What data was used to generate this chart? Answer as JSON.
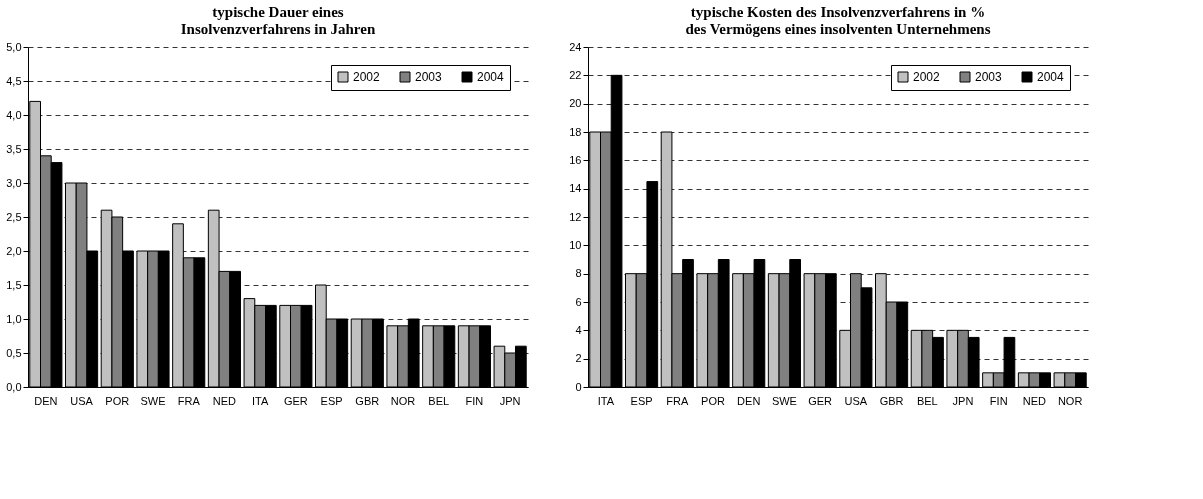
{
  "chart_data": [
    {
      "type": "bar",
      "title": "typische Dauer eines\nInsolvenzverfahrens in Jahren",
      "categories": [
        "DEN",
        "USA",
        "POR",
        "SWE",
        "FRA",
        "NED",
        "ITA",
        "GER",
        "ESP",
        "GBR",
        "NOR",
        "BEL",
        "FIN",
        "JPN"
      ],
      "series": [
        {
          "name": "2002",
          "color": "#c0c0c0",
          "values": [
            4.2,
            3.0,
            2.6,
            2.0,
            2.4,
            2.6,
            1.3,
            1.2,
            1.5,
            1.0,
            0.9,
            0.9,
            0.9,
            0.6
          ]
        },
        {
          "name": "2003",
          "color": "#808080",
          "values": [
            3.4,
            3.0,
            2.5,
            2.0,
            1.9,
            1.7,
            1.2,
            1.2,
            1.0,
            1.0,
            0.9,
            0.9,
            0.9,
            0.5
          ]
        },
        {
          "name": "2004",
          "color": "#000000",
          "values": [
            3.3,
            2.0,
            2.0,
            2.0,
            1.9,
            1.7,
            1.2,
            1.2,
            1.0,
            1.0,
            1.0,
            0.9,
            0.9,
            0.6
          ]
        }
      ],
      "ylim": [
        0,
        5
      ],
      "yticks": [
        {
          "value": 0,
          "label": "0,0"
        },
        {
          "value": 0.5,
          "label": "0,5"
        },
        {
          "value": 1,
          "label": "1,0"
        },
        {
          "value": 1.5,
          "label": "1,5"
        },
        {
          "value": 2,
          "label": "2,0"
        },
        {
          "value": 2.5,
          "label": "2,5"
        },
        {
          "value": 3,
          "label": "3,0"
        },
        {
          "value": 3.5,
          "label": "3,5"
        },
        {
          "value": 4,
          "label": "4,0"
        },
        {
          "value": 4.5,
          "label": "4,5"
        },
        {
          "value": 5,
          "label": "5,0"
        }
      ],
      "grid": "y",
      "legend": "top right"
    },
    {
      "type": "bar",
      "title": "typische Kosten des Insolvenzverfahrens in %\ndes Vermögens eines insolventen Unternehmens",
      "categories": [
        "ITA",
        "ESP",
        "FRA",
        "POR",
        "DEN",
        "SWE",
        "GER",
        "USA",
        "GBR",
        "BEL",
        "JPN",
        "FIN",
        "NED",
        "NOR"
      ],
      "series": [
        {
          "name": "2002",
          "color": "#c0c0c0",
          "values": [
            18,
            8,
            18,
            8,
            8,
            8,
            8,
            4,
            8,
            4,
            4,
            1,
            1,
            1
          ]
        },
        {
          "name": "2003",
          "color": "#808080",
          "values": [
            18,
            8,
            8,
            8,
            8,
            8,
            8,
            8,
            6,
            4,
            4,
            1,
            1,
            1
          ]
        },
        {
          "name": "2004",
          "color": "#000000",
          "values": [
            22,
            14.5,
            9,
            9,
            9,
            9,
            8,
            7,
            6,
            3.5,
            3.5,
            3.5,
            1,
            1
          ]
        }
      ],
      "ylim": [
        0,
        24
      ],
      "yticks": [
        0,
        2,
        4,
        6,
        8,
        10,
        12,
        14,
        16,
        18,
        20,
        22,
        24
      ],
      "grid": "y",
      "legend": "top right"
    }
  ]
}
